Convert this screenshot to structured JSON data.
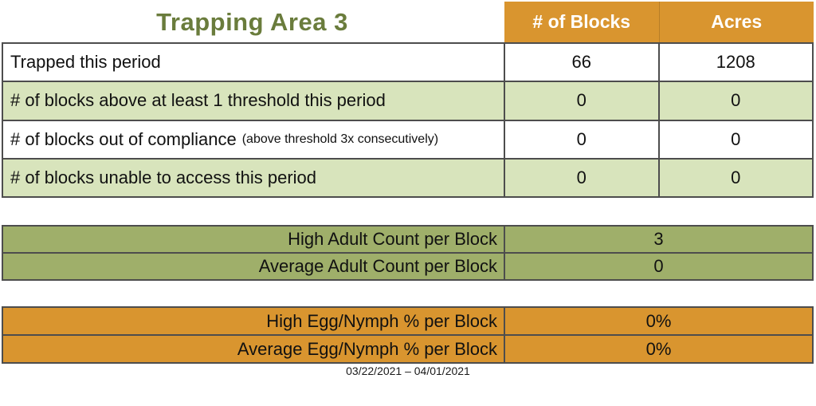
{
  "title": "Trapping Area 3",
  "columns": {
    "blocks": "# of Blocks",
    "acres": "Acres"
  },
  "summary_table": {
    "rows": [
      {
        "label": "Trapped this period",
        "blocks": "66",
        "acres": "1208"
      },
      {
        "label": "# of blocks above at least 1 threshold this period",
        "blocks": "0",
        "acres": "0"
      },
      {
        "label": "# of blocks out of compliance",
        "note": "(above threshold 3x consecutively)",
        "blocks": "0",
        "acres": "0"
      },
      {
        "label": "# of blocks unable to access this period",
        "blocks": "0",
        "acres": "0"
      }
    ]
  },
  "adult_table": {
    "rows": [
      {
        "label": "High Adult Count per Block",
        "value": "3"
      },
      {
        "label": "Average Adult Count per Block",
        "value": "0"
      }
    ]
  },
  "egg_table": {
    "rows": [
      {
        "label": "High Egg/Nymph % per Block",
        "value": "0%"
      },
      {
        "label": "Average Egg/Nymph % per Block",
        "value": "0%"
      }
    ]
  },
  "footer": {
    "date_range": "03/22/2021 – 04/01/2021"
  },
  "colors": {
    "orange": "#D9952F",
    "light_green": "#D8E4BC",
    "olive": "#9FAF6A",
    "title_green": "#6A7C3C"
  }
}
